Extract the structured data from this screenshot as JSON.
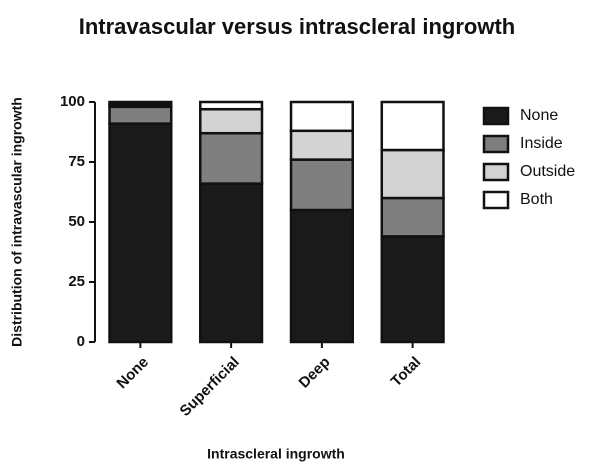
{
  "chart_data": {
    "type": "stacked_bar",
    "title": "Intravascular versus intrascleral ingrowth",
    "x_label": "Intrascleral ingrowth",
    "y_label": "Distribution of intravascular ingrowth",
    "categories": [
      "None",
      "Superficial",
      "Deep",
      "Total"
    ],
    "series": [
      {
        "name": "None",
        "color": "#1a1a1a",
        "values": [
          91,
          66,
          55,
          44
        ]
      },
      {
        "name": "Inside",
        "color": "#7f7f7f",
        "values": [
          7,
          21,
          21,
          16
        ]
      },
      {
        "name": "Outside",
        "color": "#d3d3d3",
        "values": [
          1,
          10,
          12,
          20
        ]
      },
      {
        "name": "Both",
        "color": "#ffffff",
        "values": [
          1,
          3,
          12,
          20
        ]
      }
    ],
    "ylim": [
      0,
      100
    ],
    "yticks": [
      0,
      25,
      50,
      75,
      100
    ],
    "legend": "right"
  }
}
